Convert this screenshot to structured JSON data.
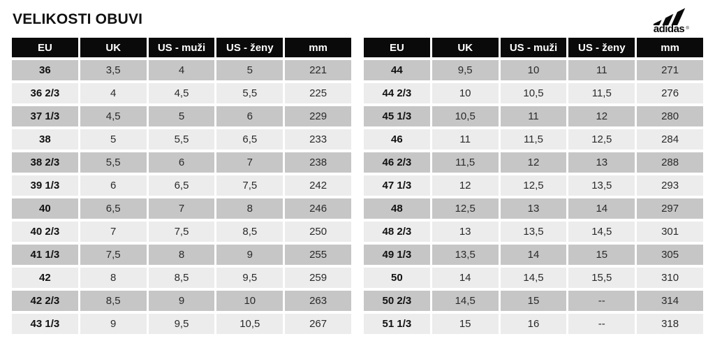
{
  "title": "VELIKOSTI OBUVI",
  "logo": {
    "brand": "adidas",
    "registered": "®"
  },
  "columns": [
    "EU",
    "UK",
    "US - muži",
    "US - ženy",
    "mm"
  ],
  "chart_data": [
    {
      "type": "table",
      "name": "size-table-left",
      "columns": [
        "EU",
        "UK",
        "US - muži",
        "US - ženy",
        "mm"
      ],
      "rows": [
        [
          "36",
          "3,5",
          "4",
          "5",
          "221"
        ],
        [
          "36 2/3",
          "4",
          "4,5",
          "5,5",
          "225"
        ],
        [
          "37 1/3",
          "4,5",
          "5",
          "6",
          "229"
        ],
        [
          "38",
          "5",
          "5,5",
          "6,5",
          "233"
        ],
        [
          "38 2/3",
          "5,5",
          "6",
          "7",
          "238"
        ],
        [
          "39 1/3",
          "6",
          "6,5",
          "7,5",
          "242"
        ],
        [
          "40",
          "6,5",
          "7",
          "8",
          "246"
        ],
        [
          "40 2/3",
          "7",
          "7,5",
          "8,5",
          "250"
        ],
        [
          "41 1/3",
          "7,5",
          "8",
          "9",
          "255"
        ],
        [
          "42",
          "8",
          "8,5",
          "9,5",
          "259"
        ],
        [
          "42 2/3",
          "8,5",
          "9",
          "10",
          "263"
        ],
        [
          "43 1/3",
          "9",
          "9,5",
          "10,5",
          "267"
        ]
      ]
    },
    {
      "type": "table",
      "name": "size-table-right",
      "columns": [
        "EU",
        "UK",
        "US - muži",
        "US - ženy",
        "mm"
      ],
      "rows": [
        [
          "44",
          "9,5",
          "10",
          "11",
          "271"
        ],
        [
          "44 2/3",
          "10",
          "10,5",
          "11,5",
          "276"
        ],
        [
          "45 1/3",
          "10,5",
          "11",
          "12",
          "280"
        ],
        [
          "46",
          "11",
          "11,5",
          "12,5",
          "284"
        ],
        [
          "46 2/3",
          "11,5",
          "12",
          "13",
          "288"
        ],
        [
          "47 1/3",
          "12",
          "12,5",
          "13,5",
          "293"
        ],
        [
          "48",
          "12,5",
          "13",
          "14",
          "297"
        ],
        [
          "48 2/3",
          "13",
          "13,5",
          "14,5",
          "301"
        ],
        [
          "49 1/3",
          "13,5",
          "14",
          "15",
          "305"
        ],
        [
          "50",
          "14",
          "14,5",
          "15,5",
          "310"
        ],
        [
          "50 2/3",
          "14,5",
          "15",
          "--",
          "314"
        ],
        [
          "51 1/3",
          "15",
          "16",
          "--",
          "318"
        ]
      ]
    }
  ],
  "colors": {
    "header_bg": "#0a0a0a",
    "header_text": "#ffffff",
    "row_dark": "#c6c6c6",
    "row_light": "#ececec",
    "text": "#2a2a2a",
    "background": "#ffffff"
  }
}
